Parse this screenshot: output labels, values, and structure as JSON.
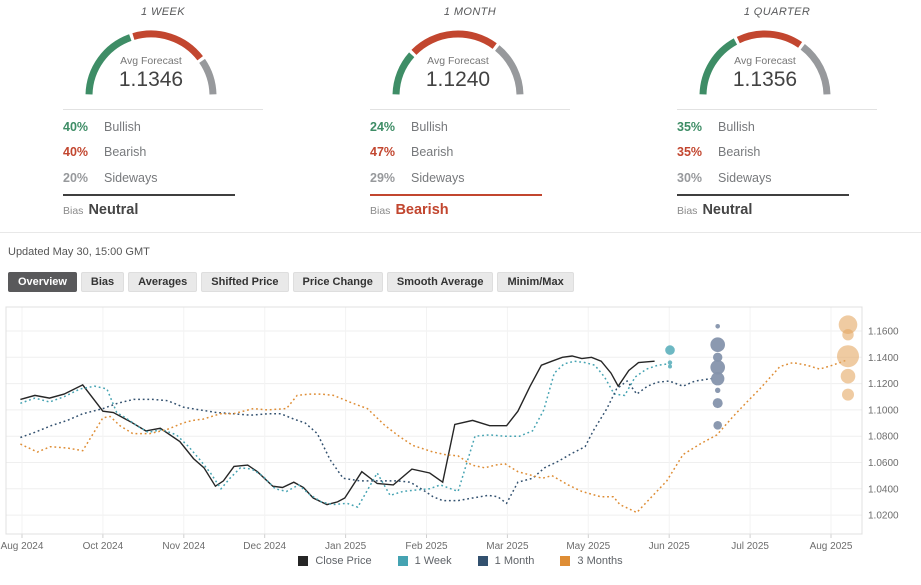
{
  "colors": {
    "close": "#262626",
    "week": "#45A3B2",
    "month": "#33516F",
    "quarter": "#DE8D35",
    "bullish": "#3E8D66",
    "bearish": "#C2462F",
    "sideways": "#97999C",
    "neutral_text": "#454545",
    "week_bubble": "rgba(73,166,180,0.8)",
    "month_bubble": "rgba(133,148,172,0.95)",
    "quarter_bubble": "rgba(229,168,100,0.6)"
  },
  "cards": [
    {
      "period": "1 WEEK",
      "avg_label": "Avg Forecast",
      "avg_value": "1.1346",
      "rows": [
        {
          "pct": "40%",
          "label": "Bullish",
          "type": "bullish"
        },
        {
          "pct": "40%",
          "label": "Bearish",
          "type": "bearish"
        },
        {
          "pct": "20%",
          "label": "Sideways",
          "type": "sideways"
        }
      ],
      "bias_label": "Bias",
      "bias_value": "Neutral",
      "bias_type": "neutral",
      "gauge_segments": [
        {
          "pct": 40,
          "type": "bullish"
        },
        {
          "pct": 40,
          "type": "bearish"
        },
        {
          "pct": 20,
          "type": "sideways"
        }
      ]
    },
    {
      "period": "1 MONTH",
      "avg_label": "Avg Forecast",
      "avg_value": "1.1240",
      "rows": [
        {
          "pct": "24%",
          "label": "Bullish",
          "type": "bullish"
        },
        {
          "pct": "47%",
          "label": "Bearish",
          "type": "bearish"
        },
        {
          "pct": "29%",
          "label": "Sideways",
          "type": "sideways"
        }
      ],
      "bias_label": "Bias",
      "bias_value": "Bearish",
      "bias_type": "bearish",
      "gauge_segments": [
        {
          "pct": 24,
          "type": "bullish"
        },
        {
          "pct": 47,
          "type": "bearish"
        },
        {
          "pct": 29,
          "type": "sideways"
        }
      ]
    },
    {
      "period": "1 QUARTER",
      "avg_label": "Avg Forecast",
      "avg_value": "1.1356",
      "rows": [
        {
          "pct": "35%",
          "label": "Bullish",
          "type": "bullish"
        },
        {
          "pct": "35%",
          "label": "Bearish",
          "type": "bearish"
        },
        {
          "pct": "30%",
          "label": "Sideways",
          "type": "sideways"
        }
      ],
      "bias_label": "Bias",
      "bias_value": "Neutral",
      "bias_type": "neutral",
      "gauge_segments": [
        {
          "pct": 35,
          "type": "bullish"
        },
        {
          "pct": 35,
          "type": "bearish"
        },
        {
          "pct": 30,
          "type": "sideways"
        }
      ]
    }
  ],
  "updated_text": "Updated May 30, 15:00 GMT",
  "tabs": [
    {
      "label": "Overview",
      "selected": true
    },
    {
      "label": "Bias",
      "selected": false
    },
    {
      "label": "Averages",
      "selected": false
    },
    {
      "label": "Shifted Price",
      "selected": false
    },
    {
      "label": "Price Change",
      "selected": false
    },
    {
      "label": "Smooth Average",
      "selected": false
    },
    {
      "label": "Minim/Max",
      "selected": false
    }
  ],
  "chart_data": {
    "type": "line",
    "x_axis_labels": [
      "Aug 2024",
      "Oct 2024",
      "Nov 2024",
      "Dec 2024",
      "Jan 2025",
      "Feb 2025",
      "Mar 2025",
      "May 2025",
      "Jun 2025",
      "Jul 2025",
      "Aug 2025"
    ],
    "y_ticks": [
      "1.1600",
      "1.1400",
      "1.1200",
      "1.1000",
      "1.0800",
      "1.0600",
      "1.0400",
      "1.0200"
    ],
    "ylim": [
      1.005,
      1.178
    ],
    "grid": true,
    "legend_position": "bottom",
    "series": [
      {
        "name": "Close Price",
        "style": "solid",
        "color_key": "close",
        "points": [
          [
            -0.02,
            1.108
          ],
          [
            0.16,
            1.111
          ],
          [
            0.34,
            1.109
          ],
          [
            0.52,
            1.112
          ],
          [
            0.75,
            1.119
          ],
          [
            1.0,
            1.099
          ],
          [
            1.13,
            1.098
          ],
          [
            1.34,
            1.091
          ],
          [
            1.53,
            1.084
          ],
          [
            1.71,
            1.086
          ],
          [
            1.95,
            1.076
          ],
          [
            2.12,
            1.063
          ],
          [
            2.25,
            1.056
          ],
          [
            2.39,
            1.042
          ],
          [
            2.49,
            1.046
          ],
          [
            2.62,
            1.057
          ],
          [
            2.79,
            1.058
          ],
          [
            2.91,
            1.053
          ],
          [
            3.1,
            1.042
          ],
          [
            3.22,
            1.041
          ],
          [
            3.36,
            1.045
          ],
          [
            3.48,
            1.041
          ],
          [
            3.6,
            1.033
          ],
          [
            3.77,
            1.028
          ],
          [
            3.9,
            1.03
          ],
          [
            3.99,
            1.033
          ],
          [
            4.2,
            1.053
          ],
          [
            4.39,
            1.044
          ],
          [
            4.59,
            1.043
          ],
          [
            4.82,
            1.055
          ],
          [
            5.04,
            1.052
          ],
          [
            5.2,
            1.045
          ],
          [
            5.35,
            1.089
          ],
          [
            5.57,
            1.092
          ],
          [
            5.78,
            1.088
          ],
          [
            5.99,
            1.088
          ],
          [
            6.13,
            1.099
          ],
          [
            6.28,
            1.118
          ],
          [
            6.42,
            1.134
          ],
          [
            6.55,
            1.137
          ],
          [
            6.68,
            1.14
          ],
          [
            6.8,
            1.141
          ],
          [
            6.92,
            1.139
          ],
          [
            7.04,
            1.14
          ],
          [
            7.16,
            1.137
          ],
          [
            7.28,
            1.128
          ],
          [
            7.37,
            1.118
          ],
          [
            7.5,
            1.13
          ],
          [
            7.62,
            1.136
          ],
          [
            7.82,
            1.137
          ]
        ]
      },
      {
        "name": "1 Week",
        "style": "dotted",
        "color_key": "week",
        "points": [
          [
            -0.02,
            1.105
          ],
          [
            0.16,
            1.109
          ],
          [
            0.34,
            1.106
          ],
          [
            0.52,
            1.11
          ],
          [
            0.72,
            1.116
          ],
          [
            0.9,
            1.118
          ],
          [
            1.05,
            1.116
          ],
          [
            1.17,
            1.098
          ],
          [
            1.28,
            1.094
          ],
          [
            1.42,
            1.088
          ],
          [
            1.56,
            1.083
          ],
          [
            1.73,
            1.085
          ],
          [
            1.91,
            1.081
          ],
          [
            2.06,
            1.072
          ],
          [
            2.2,
            1.062
          ],
          [
            2.33,
            1.052
          ],
          [
            2.46,
            1.04
          ],
          [
            2.57,
            1.048
          ],
          [
            2.7,
            1.056
          ],
          [
            2.84,
            1.055
          ],
          [
            2.97,
            1.05
          ],
          [
            3.13,
            1.04
          ],
          [
            3.27,
            1.038
          ],
          [
            3.42,
            1.043
          ],
          [
            3.55,
            1.036
          ],
          [
            3.7,
            1.03
          ],
          [
            3.84,
            1.028
          ],
          [
            4.02,
            1.029
          ],
          [
            4.15,
            1.026
          ],
          [
            4.39,
            1.052
          ],
          [
            4.55,
            1.035
          ],
          [
            4.71,
            1.038
          ],
          [
            4.86,
            1.039
          ],
          [
            5.04,
            1.04
          ],
          [
            5.17,
            1.043
          ],
          [
            5.39,
            1.038
          ],
          [
            5.6,
            1.08
          ],
          [
            5.78,
            1.081
          ],
          [
            5.97,
            1.08
          ],
          [
            6.15,
            1.08
          ],
          [
            6.31,
            1.084
          ],
          [
            6.45,
            1.1
          ],
          [
            6.58,
            1.128
          ],
          [
            6.7,
            1.135
          ],
          [
            6.83,
            1.137
          ],
          [
            6.96,
            1.136
          ],
          [
            7.08,
            1.134
          ],
          [
            7.2,
            1.125
          ],
          [
            7.32,
            1.112
          ],
          [
            7.45,
            1.111
          ],
          [
            7.58,
            1.125
          ],
          [
            7.72,
            1.131
          ],
          [
            7.86,
            1.134
          ],
          [
            7.99,
            1.135
          ]
        ]
      },
      {
        "name": "1 Month",
        "style": "dotted",
        "color_key": "month",
        "points": [
          [
            -0.02,
            1.079
          ],
          [
            0.16,
            1.083
          ],
          [
            0.36,
            1.088
          ],
          [
            0.56,
            1.092
          ],
          [
            0.75,
            1.097
          ],
          [
            1.0,
            1.101
          ],
          [
            1.18,
            1.105
          ],
          [
            1.38,
            1.108
          ],
          [
            1.62,
            1.108
          ],
          [
            1.8,
            1.107
          ],
          [
            2.0,
            1.102
          ],
          [
            2.2,
            1.1
          ],
          [
            2.4,
            1.098
          ],
          [
            2.62,
            1.097
          ],
          [
            2.83,
            1.096
          ],
          [
            3.03,
            1.097
          ],
          [
            3.2,
            1.097
          ],
          [
            3.36,
            1.093
          ],
          [
            3.5,
            1.09
          ],
          [
            3.65,
            1.082
          ],
          [
            3.81,
            1.062
          ],
          [
            3.97,
            1.048
          ],
          [
            4.18,
            1.046
          ],
          [
            4.39,
            1.046
          ],
          [
            4.64,
            1.046
          ],
          [
            4.8,
            1.045
          ],
          [
            4.96,
            1.039
          ],
          [
            5.08,
            1.034
          ],
          [
            5.2,
            1.031
          ],
          [
            5.39,
            1.031
          ],
          [
            5.57,
            1.033
          ],
          [
            5.76,
            1.035
          ],
          [
            5.88,
            1.034
          ],
          [
            5.99,
            1.029
          ],
          [
            6.13,
            1.045
          ],
          [
            6.31,
            1.048
          ],
          [
            6.46,
            1.056
          ],
          [
            6.63,
            1.061
          ],
          [
            6.8,
            1.067
          ],
          [
            6.96,
            1.072
          ],
          [
            7.06,
            1.084
          ],
          [
            7.23,
            1.101
          ],
          [
            7.35,
            1.116
          ],
          [
            7.48,
            1.122
          ],
          [
            7.6,
            1.112
          ],
          [
            7.73,
            1.118
          ],
          [
            7.85,
            1.121
          ],
          [
            8.0,
            1.122
          ],
          [
            8.17,
            1.118
          ],
          [
            8.32,
            1.122
          ],
          [
            8.55,
            1.124
          ]
        ]
      },
      {
        "name": "3 Months",
        "style": "dotted",
        "color_key": "quarter",
        "points": [
          [
            -0.02,
            1.074
          ],
          [
            0.19,
            1.068
          ],
          [
            0.35,
            1.072
          ],
          [
            0.56,
            1.071
          ],
          [
            0.75,
            1.069
          ],
          [
            1.0,
            1.094
          ],
          [
            1.09,
            1.095
          ],
          [
            1.21,
            1.088
          ],
          [
            1.37,
            1.082
          ],
          [
            1.58,
            1.082
          ],
          [
            1.79,
            1.085
          ],
          [
            1.99,
            1.09
          ],
          [
            2.11,
            1.092
          ],
          [
            2.24,
            1.093
          ],
          [
            2.45,
            1.097
          ],
          [
            2.61,
            1.097
          ],
          [
            2.86,
            1.101
          ],
          [
            3.03,
            1.1
          ],
          [
            3.27,
            1.101
          ],
          [
            3.4,
            1.111
          ],
          [
            3.55,
            1.112
          ],
          [
            3.7,
            1.112
          ],
          [
            3.85,
            1.111
          ],
          [
            4.09,
            1.105
          ],
          [
            4.27,
            1.101
          ],
          [
            4.49,
            1.088
          ],
          [
            4.66,
            1.08
          ],
          [
            4.83,
            1.073
          ],
          [
            5.08,
            1.068
          ],
          [
            5.23,
            1.066
          ],
          [
            5.39,
            1.065
          ],
          [
            5.56,
            1.058
          ],
          [
            5.72,
            1.056
          ],
          [
            5.85,
            1.058
          ],
          [
            5.97,
            1.059
          ],
          [
            6.13,
            1.053
          ],
          [
            6.31,
            1.05
          ],
          [
            6.43,
            1.048
          ],
          [
            6.55,
            1.05
          ],
          [
            6.75,
            1.043
          ],
          [
            6.92,
            1.038
          ],
          [
            7.15,
            1.034
          ],
          [
            7.31,
            1.034
          ],
          [
            7.39,
            1.028
          ],
          [
            7.6,
            1.022
          ],
          [
            7.8,
            1.035
          ],
          [
            7.97,
            1.046
          ],
          [
            8.17,
            1.066
          ],
          [
            8.38,
            1.074
          ],
          [
            8.59,
            1.081
          ],
          [
            8.79,
            1.095
          ],
          [
            8.96,
            1.106
          ],
          [
            9.12,
            1.116
          ],
          [
            9.37,
            1.133
          ],
          [
            9.53,
            1.136
          ],
          [
            9.7,
            1.134
          ],
          [
            9.86,
            1.131
          ],
          [
            10.02,
            1.134
          ],
          [
            10.2,
            1.138
          ]
        ]
      }
    ],
    "bubbles": [
      {
        "series": "1 Week",
        "color_key": "week_bubble",
        "points": [
          [
            8.01,
            1.1455,
            4.8
          ],
          [
            8.01,
            1.136,
            2.2
          ],
          [
            8.01,
            1.133,
            2.0
          ]
        ]
      },
      {
        "series": "1 Month",
        "color_key": "month_bubble",
        "points": [
          [
            8.6,
            1.1636,
            2.3
          ],
          [
            8.6,
            1.1496,
            7.3
          ],
          [
            8.6,
            1.14,
            4.7
          ],
          [
            8.6,
            1.1324,
            7.3
          ],
          [
            8.6,
            1.1237,
            6.7
          ],
          [
            8.6,
            1.1149,
            2.7
          ],
          [
            8.6,
            1.1052,
            5.0
          ],
          [
            8.6,
            1.0883,
            4.3
          ]
        ]
      },
      {
        "series": "3 Months",
        "color_key": "quarter_bubble",
        "points": [
          [
            10.21,
            1.1648,
            9.3
          ],
          [
            10.21,
            1.1572,
            5.7
          ],
          [
            10.21,
            1.1408,
            11.0
          ],
          [
            10.21,
            1.1256,
            7.3
          ],
          [
            10.21,
            1.1116,
            6.0
          ]
        ]
      }
    ],
    "legend": [
      {
        "label": "Close Price",
        "color_key": "close"
      },
      {
        "label": "1 Week",
        "color_key": "week"
      },
      {
        "label": "1 Month",
        "color_key": "month"
      },
      {
        "label": "3 Months",
        "color_key": "quarter"
      }
    ]
  }
}
